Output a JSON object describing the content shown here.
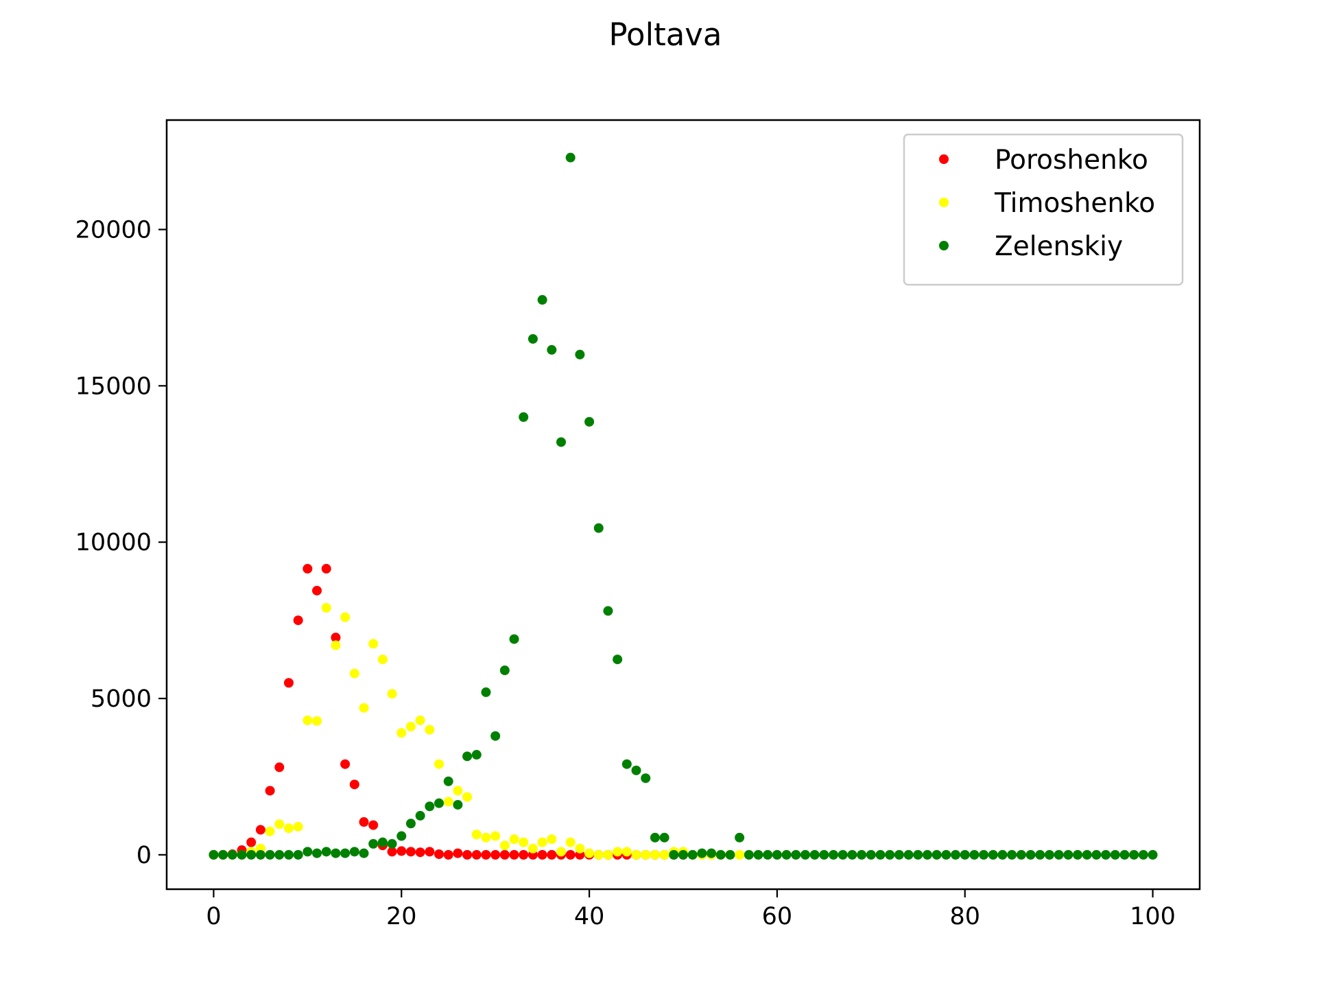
{
  "chart_data": {
    "type": "scatter",
    "title": "Poltava",
    "xlabel": "",
    "ylabel": "",
    "xlim": [
      -5,
      105
    ],
    "ylim": [
      -1100,
      23500
    ],
    "x_ticks": [
      0,
      20,
      40,
      60,
      80,
      100
    ],
    "y_ticks": [
      0,
      5000,
      10000,
      15000,
      20000
    ],
    "grid": false,
    "legend_position": "top-right",
    "series": [
      {
        "name": "Poroshenko",
        "color": "#ff0000",
        "points": [
          [
            0,
            0
          ],
          [
            1,
            0
          ],
          [
            2,
            20
          ],
          [
            3,
            150
          ],
          [
            4,
            400
          ],
          [
            5,
            800
          ],
          [
            6,
            2050
          ],
          [
            7,
            2800
          ],
          [
            8,
            5500
          ],
          [
            9,
            7500
          ],
          [
            10,
            9150
          ],
          [
            11,
            8450
          ],
          [
            12,
            9150
          ],
          [
            13,
            6950
          ],
          [
            14,
            2900
          ],
          [
            15,
            2250
          ],
          [
            16,
            1050
          ],
          [
            17,
            950
          ],
          [
            18,
            300
          ],
          [
            19,
            100
          ],
          [
            20,
            120
          ],
          [
            21,
            100
          ],
          [
            22,
            80
          ],
          [
            23,
            100
          ],
          [
            24,
            20
          ],
          [
            25,
            0
          ],
          [
            26,
            50
          ],
          [
            27,
            0
          ],
          [
            28,
            0
          ],
          [
            29,
            0
          ],
          [
            30,
            0
          ],
          [
            31,
            0
          ],
          [
            32,
            0
          ],
          [
            33,
            0
          ],
          [
            34,
            0
          ],
          [
            35,
            0
          ],
          [
            36,
            0
          ],
          [
            37,
            0
          ],
          [
            38,
            0
          ],
          [
            39,
            0
          ],
          [
            40,
            0
          ],
          [
            41,
            0
          ],
          [
            42,
            0
          ],
          [
            43,
            0
          ],
          [
            44,
            0
          ],
          [
            45,
            0
          ],
          [
            46,
            0
          ],
          [
            47,
            0
          ],
          [
            48,
            0
          ],
          [
            49,
            0
          ],
          [
            50,
            0
          ]
        ]
      },
      {
        "name": "Timoshenko",
        "color": "#ffff00",
        "points": [
          [
            0,
            0
          ],
          [
            1,
            0
          ],
          [
            2,
            0
          ],
          [
            3,
            0
          ],
          [
            4,
            100
          ],
          [
            5,
            200
          ],
          [
            6,
            750
          ],
          [
            7,
            980
          ],
          [
            8,
            850
          ],
          [
            9,
            900
          ],
          [
            10,
            4300
          ],
          [
            11,
            4280
          ],
          [
            12,
            7900
          ],
          [
            13,
            6700
          ],
          [
            14,
            7600
          ],
          [
            15,
            5800
          ],
          [
            16,
            4700
          ],
          [
            17,
            6750
          ],
          [
            18,
            6250
          ],
          [
            19,
            5150
          ],
          [
            20,
            3900
          ],
          [
            21,
            4100
          ],
          [
            22,
            4300
          ],
          [
            23,
            4000
          ],
          [
            24,
            2900
          ],
          [
            25,
            1700
          ],
          [
            26,
            2050
          ],
          [
            27,
            1850
          ],
          [
            28,
            650
          ],
          [
            29,
            550
          ],
          [
            30,
            600
          ],
          [
            31,
            300
          ],
          [
            32,
            500
          ],
          [
            33,
            400
          ],
          [
            34,
            200
          ],
          [
            35,
            400
          ],
          [
            36,
            500
          ],
          [
            37,
            100
          ],
          [
            38,
            400
          ],
          [
            39,
            200
          ],
          [
            40,
            50
          ],
          [
            41,
            0
          ],
          [
            42,
            0
          ],
          [
            43,
            100
          ],
          [
            44,
            100
          ],
          [
            45,
            0
          ],
          [
            46,
            0
          ],
          [
            47,
            0
          ],
          [
            48,
            0
          ],
          [
            49,
            100
          ],
          [
            50,
            100
          ],
          [
            51,
            0
          ],
          [
            52,
            0
          ],
          [
            53,
            0
          ],
          [
            54,
            0
          ],
          [
            55,
            0
          ],
          [
            56,
            0
          ]
        ]
      },
      {
        "name": "Zelenskiy",
        "color": "#008000",
        "points": [
          [
            0,
            0
          ],
          [
            1,
            0
          ],
          [
            2,
            0
          ],
          [
            3,
            0
          ],
          [
            4,
            0
          ],
          [
            5,
            0
          ],
          [
            6,
            0
          ],
          [
            7,
            0
          ],
          [
            8,
            0
          ],
          [
            9,
            0
          ],
          [
            10,
            100
          ],
          [
            11,
            50
          ],
          [
            12,
            100
          ],
          [
            13,
            50
          ],
          [
            14,
            50
          ],
          [
            15,
            100
          ],
          [
            16,
            50
          ],
          [
            17,
            350
          ],
          [
            18,
            400
          ],
          [
            19,
            350
          ],
          [
            20,
            600
          ],
          [
            21,
            1000
          ],
          [
            22,
            1250
          ],
          [
            23,
            1550
          ],
          [
            24,
            1650
          ],
          [
            25,
            2350
          ],
          [
            26,
            1600
          ],
          [
            27,
            3150
          ],
          [
            28,
            3200
          ],
          [
            29,
            5200
          ],
          [
            30,
            3800
          ],
          [
            31,
            5900
          ],
          [
            32,
            6900
          ],
          [
            33,
            14000
          ],
          [
            34,
            16500
          ],
          [
            35,
            17750
          ],
          [
            36,
            16150
          ],
          [
            37,
            13200
          ],
          [
            38,
            22300
          ],
          [
            39,
            16000
          ],
          [
            40,
            13850
          ],
          [
            41,
            10450
          ],
          [
            42,
            7800
          ],
          [
            43,
            6250
          ],
          [
            44,
            2900
          ],
          [
            45,
            2700
          ],
          [
            46,
            2450
          ],
          [
            47,
            550
          ],
          [
            48,
            550
          ],
          [
            49,
            0
          ],
          [
            50,
            0
          ],
          [
            51,
            0
          ],
          [
            52,
            50
          ],
          [
            53,
            50
          ],
          [
            54,
            0
          ],
          [
            55,
            0
          ],
          [
            56,
            550
          ],
          [
            57,
            0
          ],
          [
            58,
            0
          ],
          [
            59,
            0
          ],
          [
            60,
            0
          ],
          [
            61,
            0
          ],
          [
            62,
            0
          ],
          [
            63,
            0
          ],
          [
            64,
            0
          ],
          [
            65,
            0
          ],
          [
            66,
            0
          ],
          [
            67,
            0
          ],
          [
            68,
            0
          ],
          [
            69,
            0
          ],
          [
            70,
            0
          ],
          [
            71,
            0
          ],
          [
            72,
            0
          ],
          [
            73,
            0
          ],
          [
            74,
            0
          ],
          [
            75,
            0
          ],
          [
            76,
            0
          ],
          [
            77,
            0
          ],
          [
            78,
            0
          ],
          [
            79,
            0
          ],
          [
            80,
            0
          ],
          [
            81,
            0
          ],
          [
            82,
            0
          ],
          [
            83,
            0
          ],
          [
            84,
            0
          ],
          [
            85,
            0
          ],
          [
            86,
            0
          ],
          [
            87,
            0
          ],
          [
            88,
            0
          ],
          [
            89,
            0
          ],
          [
            90,
            0
          ],
          [
            91,
            0
          ],
          [
            92,
            0
          ],
          [
            93,
            0
          ],
          [
            94,
            0
          ],
          [
            95,
            0
          ],
          [
            96,
            0
          ],
          [
            97,
            0
          ],
          [
            98,
            0
          ],
          [
            99,
            0
          ],
          [
            100,
            0
          ]
        ]
      }
    ]
  }
}
